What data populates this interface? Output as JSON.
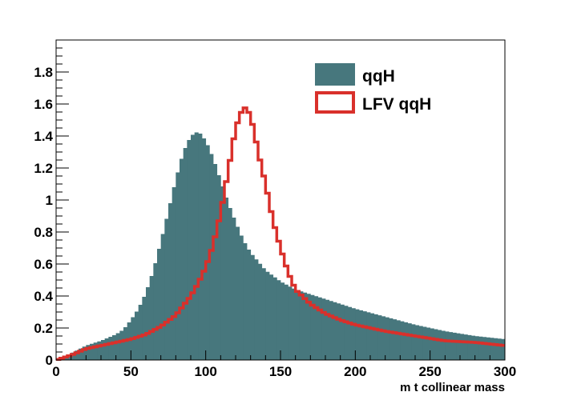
{
  "chart_data": {
    "type": "histogram",
    "title": "",
    "xlabel": "m t collinear mass",
    "ylabel": "",
    "xlim": [
      0,
      300
    ],
    "ylim": [
      0,
      2.0
    ],
    "bin_width": 2.5,
    "grid": false,
    "legend_position": "top-right",
    "x_ticks": [
      0,
      50,
      100,
      150,
      200,
      250,
      300
    ],
    "x_tick_labels": [
      "0",
      "50",
      "100",
      "150",
      "200",
      "250",
      "300"
    ],
    "y_ticks": [
      0,
      0.2,
      0.4,
      0.6,
      0.8,
      1,
      1.2,
      1.4,
      1.6,
      1.8
    ],
    "y_tick_labels": [
      "0",
      "0.2",
      "0.4",
      "0.6",
      "0.8",
      "1",
      "1.2",
      "1.4",
      "1.6",
      "1.8"
    ],
    "series": [
      {
        "name": "qqH",
        "style": "filled",
        "color": "#47777d",
        "anchors": [
          [
            0,
            0.0
          ],
          [
            10,
            0.04
          ],
          [
            20,
            0.09
          ],
          [
            30,
            0.12
          ],
          [
            40,
            0.16
          ],
          [
            45,
            0.19
          ],
          [
            50,
            0.25
          ],
          [
            55,
            0.32
          ],
          [
            60,
            0.42
          ],
          [
            65,
            0.56
          ],
          [
            70,
            0.74
          ],
          [
            75,
            0.93
          ],
          [
            80,
            1.13
          ],
          [
            85,
            1.3
          ],
          [
            90,
            1.4
          ],
          [
            95,
            1.43
          ],
          [
            100,
            1.37
          ],
          [
            105,
            1.26
          ],
          [
            110,
            1.12
          ],
          [
            115,
            0.98
          ],
          [
            120,
            0.86
          ],
          [
            125,
            0.75
          ],
          [
            130,
            0.67
          ],
          [
            140,
            0.56
          ],
          [
            150,
            0.49
          ],
          [
            160,
            0.44
          ],
          [
            170,
            0.41
          ],
          [
            180,
            0.38
          ],
          [
            190,
            0.35
          ],
          [
            200,
            0.32
          ],
          [
            220,
            0.27
          ],
          [
            240,
            0.22
          ],
          [
            260,
            0.18
          ],
          [
            280,
            0.15
          ],
          [
            300,
            0.13
          ]
        ]
      },
      {
        "name": "LFV qqH",
        "style": "step",
        "color": "#d9302b",
        "anchors": [
          [
            0,
            0.0
          ],
          [
            10,
            0.03
          ],
          [
            20,
            0.07
          ],
          [
            30,
            0.09
          ],
          [
            40,
            0.11
          ],
          [
            50,
            0.13
          ],
          [
            60,
            0.16
          ],
          [
            70,
            0.21
          ],
          [
            80,
            0.28
          ],
          [
            90,
            0.4
          ],
          [
            95,
            0.48
          ],
          [
            100,
            0.58
          ],
          [
            105,
            0.72
          ],
          [
            110,
            0.92
          ],
          [
            115,
            1.18
          ],
          [
            120,
            1.45
          ],
          [
            125,
            1.58
          ],
          [
            128,
            1.57
          ],
          [
            132,
            1.45
          ],
          [
            135,
            1.3
          ],
          [
            140,
            1.1
          ],
          [
            145,
            0.87
          ],
          [
            150,
            0.7
          ],
          [
            155,
            0.55
          ],
          [
            160,
            0.44
          ],
          [
            170,
            0.35
          ],
          [
            180,
            0.29
          ],
          [
            190,
            0.25
          ],
          [
            200,
            0.22
          ],
          [
            220,
            0.18
          ],
          [
            240,
            0.15
          ],
          [
            260,
            0.12
          ],
          [
            280,
            0.11
          ],
          [
            300,
            0.09
          ]
        ]
      }
    ]
  }
}
